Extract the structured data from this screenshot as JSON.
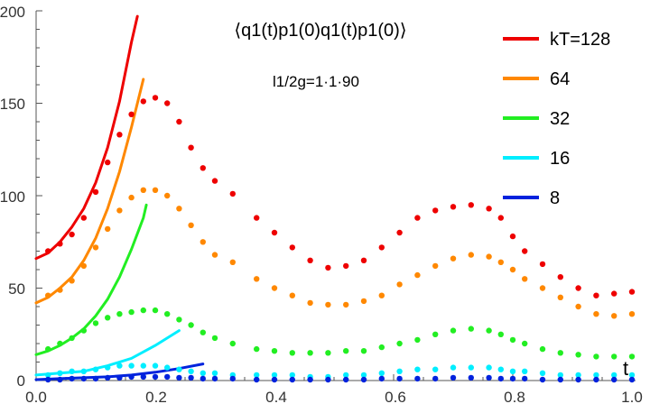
{
  "chart_data": {
    "type": "scatter",
    "title": "⟨q1(t)p1(0)q1(t)p1(0)⟩",
    "subtitle": "l1/2g=1·1·90",
    "xlabel": "t",
    "ylabel": "",
    "xlim": [
      0,
      1
    ],
    "ylim": [
      0,
      200
    ],
    "x_ticks": [
      "0.0",
      "0.2",
      "0.4",
      "0.6",
      "0.8",
      "1.0"
    ],
    "y_ticks": [
      "0",
      "50",
      "100",
      "150",
      "200"
    ],
    "legend_position": "top-right",
    "series": [
      {
        "name": "kT=128",
        "color": "#ee0000",
        "points": [
          [
            0.02,
            70
          ],
          [
            0.04,
            74
          ],
          [
            0.06,
            79
          ],
          [
            0.08,
            88
          ],
          [
            0.1,
            102
          ],
          [
            0.12,
            118
          ],
          [
            0.14,
            133
          ],
          [
            0.16,
            144
          ],
          [
            0.18,
            151
          ],
          [
            0.2,
            153
          ],
          [
            0.22,
            150
          ],
          [
            0.24,
            140
          ],
          [
            0.26,
            126
          ],
          [
            0.28,
            115
          ],
          [
            0.3,
            108
          ],
          [
            0.33,
            101
          ],
          [
            0.37,
            88
          ],
          [
            0.4,
            80
          ],
          [
            0.43,
            72
          ],
          [
            0.46,
            65
          ],
          [
            0.49,
            61
          ],
          [
            0.52,
            62
          ],
          [
            0.55,
            65
          ],
          [
            0.58,
            72
          ],
          [
            0.61,
            80
          ],
          [
            0.64,
            88
          ],
          [
            0.67,
            92
          ],
          [
            0.7,
            94
          ],
          [
            0.73,
            95
          ],
          [
            0.76,
            93
          ],
          [
            0.78,
            88
          ],
          [
            0.8,
            78
          ],
          [
            0.82,
            70
          ],
          [
            0.85,
            63
          ],
          [
            0.88,
            56
          ],
          [
            0.91,
            50
          ],
          [
            0.94,
            46
          ],
          [
            0.97,
            47
          ],
          [
            1.0,
            48
          ]
        ],
        "curve": [
          [
            0.0,
            66
          ],
          [
            0.02,
            69
          ],
          [
            0.04,
            75
          ],
          [
            0.06,
            83
          ],
          [
            0.08,
            93
          ],
          [
            0.1,
            107
          ],
          [
            0.12,
            126
          ],
          [
            0.14,
            151
          ],
          [
            0.16,
            183
          ],
          [
            0.17,
            197
          ]
        ]
      },
      {
        "name": "64",
        "color": "#ff8800",
        "points": [
          [
            0.02,
            46
          ],
          [
            0.04,
            49
          ],
          [
            0.06,
            54
          ],
          [
            0.08,
            62
          ],
          [
            0.1,
            72
          ],
          [
            0.12,
            82
          ],
          [
            0.14,
            92
          ],
          [
            0.16,
            99
          ],
          [
            0.18,
            103
          ],
          [
            0.2,
            103
          ],
          [
            0.22,
            100
          ],
          [
            0.24,
            93
          ],
          [
            0.26,
            84
          ],
          [
            0.28,
            75
          ],
          [
            0.3,
            68
          ],
          [
            0.33,
            64
          ],
          [
            0.37,
            55
          ],
          [
            0.4,
            50
          ],
          [
            0.43,
            46
          ],
          [
            0.46,
            42
          ],
          [
            0.49,
            41
          ],
          [
            0.52,
            41
          ],
          [
            0.55,
            43
          ],
          [
            0.58,
            46
          ],
          [
            0.61,
            52
          ],
          [
            0.64,
            57
          ],
          [
            0.67,
            62
          ],
          [
            0.7,
            66
          ],
          [
            0.73,
            68
          ],
          [
            0.76,
            67
          ],
          [
            0.78,
            64
          ],
          [
            0.8,
            60
          ],
          [
            0.82,
            55
          ],
          [
            0.85,
            50
          ],
          [
            0.88,
            45
          ],
          [
            0.91,
            40
          ],
          [
            0.94,
            36
          ],
          [
            0.97,
            35
          ],
          [
            1.0,
            36
          ]
        ],
        "curve": [
          [
            0.0,
            42
          ],
          [
            0.02,
            45
          ],
          [
            0.04,
            50
          ],
          [
            0.06,
            56
          ],
          [
            0.08,
            65
          ],
          [
            0.1,
            77
          ],
          [
            0.12,
            93
          ],
          [
            0.14,
            113
          ],
          [
            0.16,
            137
          ],
          [
            0.18,
            163
          ]
        ]
      },
      {
        "name": "32",
        "color": "#22ee22",
        "points": [
          [
            0.02,
            17
          ],
          [
            0.04,
            20
          ],
          [
            0.06,
            23
          ],
          [
            0.08,
            27
          ],
          [
            0.1,
            31
          ],
          [
            0.12,
            34
          ],
          [
            0.14,
            36
          ],
          [
            0.16,
            37
          ],
          [
            0.18,
            38
          ],
          [
            0.2,
            38
          ],
          [
            0.22,
            36
          ],
          [
            0.24,
            33
          ],
          [
            0.26,
            30
          ],
          [
            0.28,
            26
          ],
          [
            0.3,
            23
          ],
          [
            0.33,
            20
          ],
          [
            0.37,
            17
          ],
          [
            0.4,
            16
          ],
          [
            0.43,
            15
          ],
          [
            0.46,
            15
          ],
          [
            0.49,
            15
          ],
          [
            0.52,
            16
          ],
          [
            0.55,
            16
          ],
          [
            0.58,
            18
          ],
          [
            0.61,
            20
          ],
          [
            0.64,
            22
          ],
          [
            0.67,
            25
          ],
          [
            0.7,
            27
          ],
          [
            0.73,
            28
          ],
          [
            0.76,
            27
          ],
          [
            0.78,
            25
          ],
          [
            0.8,
            22
          ],
          [
            0.82,
            20
          ],
          [
            0.85,
            17
          ],
          [
            0.88,
            15
          ],
          [
            0.91,
            14
          ],
          [
            0.94,
            13
          ],
          [
            0.97,
            13
          ],
          [
            1.0,
            13
          ]
        ],
        "curve": [
          [
            0.0,
            14
          ],
          [
            0.02,
            16
          ],
          [
            0.04,
            19
          ],
          [
            0.06,
            23
          ],
          [
            0.08,
            28
          ],
          [
            0.1,
            35
          ],
          [
            0.12,
            44
          ],
          [
            0.14,
            56
          ],
          [
            0.16,
            71
          ],
          [
            0.18,
            88
          ],
          [
            0.185,
            95
          ]
        ]
      },
      {
        "name": "16",
        "color": "#00eeff",
        "points": [
          [
            0.02,
            3
          ],
          [
            0.04,
            4
          ],
          [
            0.06,
            5
          ],
          [
            0.08,
            5
          ],
          [
            0.1,
            6
          ],
          [
            0.12,
            7
          ],
          [
            0.14,
            8
          ],
          [
            0.16,
            8
          ],
          [
            0.18,
            8
          ],
          [
            0.2,
            8
          ],
          [
            0.22,
            7
          ],
          [
            0.24,
            6
          ],
          [
            0.26,
            5
          ],
          [
            0.28,
            4
          ],
          [
            0.3,
            4
          ],
          [
            0.33,
            3
          ],
          [
            0.37,
            3
          ],
          [
            0.4,
            3
          ],
          [
            0.43,
            3
          ],
          [
            0.46,
            2
          ],
          [
            0.49,
            2
          ],
          [
            0.52,
            3
          ],
          [
            0.55,
            3
          ],
          [
            0.58,
            4
          ],
          [
            0.61,
            5
          ],
          [
            0.64,
            6
          ],
          [
            0.67,
            6
          ],
          [
            0.7,
            7
          ],
          [
            0.73,
            7
          ],
          [
            0.76,
            7
          ],
          [
            0.78,
            6
          ],
          [
            0.8,
            5
          ],
          [
            0.82,
            5
          ],
          [
            0.85,
            4
          ],
          [
            0.88,
            3
          ],
          [
            0.91,
            3
          ],
          [
            0.94,
            3
          ],
          [
            0.97,
            3
          ],
          [
            1.0,
            3
          ]
        ],
        "curve": [
          [
            0.0,
            3
          ],
          [
            0.04,
            4
          ],
          [
            0.08,
            5
          ],
          [
            0.12,
            8
          ],
          [
            0.16,
            12
          ],
          [
            0.2,
            19
          ],
          [
            0.24,
            27
          ]
        ]
      },
      {
        "name": "8",
        "color": "#0022dd",
        "points": [
          [
            0.02,
            0.5
          ],
          [
            0.04,
            0.5
          ],
          [
            0.06,
            1
          ],
          [
            0.08,
            1
          ],
          [
            0.1,
            1
          ],
          [
            0.12,
            1.5
          ],
          [
            0.14,
            1.5
          ],
          [
            0.16,
            2
          ],
          [
            0.18,
            2
          ],
          [
            0.2,
            2
          ],
          [
            0.22,
            2
          ],
          [
            0.24,
            1.5
          ],
          [
            0.26,
            1.5
          ],
          [
            0.28,
            1
          ],
          [
            0.3,
            1
          ],
          [
            0.33,
            1
          ],
          [
            0.37,
            0.5
          ],
          [
            0.4,
            0.5
          ],
          [
            0.43,
            0.5
          ],
          [
            0.46,
            0.5
          ],
          [
            0.49,
            0.5
          ],
          [
            0.52,
            0.5
          ],
          [
            0.55,
            0.5
          ],
          [
            0.58,
            1
          ],
          [
            0.61,
            1
          ],
          [
            0.64,
            1
          ],
          [
            0.67,
            1
          ],
          [
            0.7,
            1.5
          ],
          [
            0.73,
            1.5
          ],
          [
            0.76,
            1.5
          ],
          [
            0.78,
            1
          ],
          [
            0.8,
            1
          ],
          [
            0.82,
            1
          ],
          [
            0.85,
            0.5
          ],
          [
            0.88,
            0.5
          ],
          [
            0.91,
            0.5
          ],
          [
            0.94,
            0.5
          ],
          [
            0.97,
            0.5
          ],
          [
            1.0,
            0.5
          ]
        ],
        "curve": [
          [
            0.0,
            0.5
          ],
          [
            0.04,
            1
          ],
          [
            0.08,
            1.5
          ],
          [
            0.12,
            2
          ],
          [
            0.16,
            3
          ],
          [
            0.2,
            4.5
          ],
          [
            0.24,
            6.5
          ],
          [
            0.28,
            9
          ]
        ]
      }
    ]
  }
}
